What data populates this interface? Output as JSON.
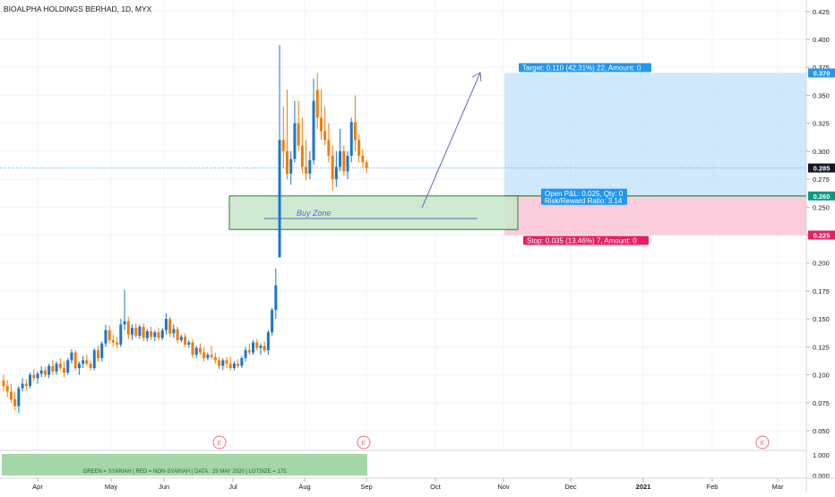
{
  "chart_data": {
    "type": "candlestick",
    "title": "BIOALPHA HOLDINGS BERHAD, 1D, MYX",
    "y_ticks": [
      "0.425",
      "0.400",
      "0.375",
      "0.350",
      "0.325",
      "0.300",
      "0.275",
      "0.250",
      "0.225",
      "0.200",
      "0.175",
      "0.150",
      "0.125",
      "0.100",
      "0.075",
      "0.050"
    ],
    "x_ticks": [
      "Apr",
      "May",
      "Jun",
      "Jul",
      "Aug",
      "Sep",
      "Oct",
      "Nov",
      "Dec",
      "2021",
      "Feb",
      "Mar"
    ],
    "ylim": [
      0.04,
      0.435
    ],
    "last_price": 0.285,
    "price_labels": [
      {
        "value": 0.37,
        "label": "0.370",
        "color": "#2196f3"
      },
      {
        "value": 0.285,
        "label": "0.285",
        "color": "#131722"
      },
      {
        "value": 0.26,
        "label": "0.260",
        "color": "#089981"
      },
      {
        "value": 0.225,
        "label": "0.225",
        "color": "#e91e63"
      }
    ],
    "colors": {
      "up": "#1976d2",
      "down": "#f57c00",
      "target": "#bbdefb",
      "stop": "#f8bbd0",
      "buy_zone": "#a5d6a7"
    },
    "candles": [
      [
        0.095,
        0.1,
        0.085,
        0.09
      ],
      [
        0.09,
        0.095,
        0.08,
        0.085
      ],
      [
        0.085,
        0.092,
        0.075,
        0.078
      ],
      [
        0.078,
        0.085,
        0.068,
        0.072
      ],
      [
        0.072,
        0.09,
        0.066,
        0.088
      ],
      [
        0.088,
        0.097,
        0.085,
        0.092
      ],
      [
        0.092,
        0.096,
        0.086,
        0.09
      ],
      [
        0.09,
        0.102,
        0.088,
        0.1
      ],
      [
        0.1,
        0.105,
        0.094,
        0.097
      ],
      [
        0.097,
        0.103,
        0.092,
        0.101
      ],
      [
        0.101,
        0.108,
        0.098,
        0.104
      ],
      [
        0.104,
        0.107,
        0.098,
        0.1
      ],
      [
        0.1,
        0.11,
        0.097,
        0.108
      ],
      [
        0.108,
        0.113,
        0.1,
        0.103
      ],
      [
        0.103,
        0.112,
        0.1,
        0.11
      ],
      [
        0.11,
        0.115,
        0.104,
        0.106
      ],
      [
        0.106,
        0.112,
        0.098,
        0.102
      ],
      [
        0.102,
        0.115,
        0.1,
        0.113
      ],
      [
        0.113,
        0.123,
        0.11,
        0.12
      ],
      [
        0.12,
        0.122,
        0.104,
        0.106
      ],
      [
        0.106,
        0.112,
        0.1,
        0.11
      ],
      [
        0.11,
        0.117,
        0.106,
        0.113
      ],
      [
        0.113,
        0.118,
        0.108,
        0.11
      ],
      [
        0.11,
        0.113,
        0.104,
        0.106
      ],
      [
        0.106,
        0.124,
        0.104,
        0.122
      ],
      [
        0.122,
        0.126,
        0.112,
        0.115
      ],
      [
        0.115,
        0.13,
        0.112,
        0.128
      ],
      [
        0.128,
        0.145,
        0.125,
        0.14
      ],
      [
        0.14,
        0.144,
        0.128,
        0.131
      ],
      [
        0.131,
        0.136,
        0.125,
        0.129
      ],
      [
        0.129,
        0.134,
        0.124,
        0.127
      ],
      [
        0.127,
        0.15,
        0.125,
        0.145
      ],
      [
        0.145,
        0.176,
        0.14,
        0.148
      ],
      [
        0.148,
        0.152,
        0.132,
        0.136
      ],
      [
        0.136,
        0.145,
        0.131,
        0.142
      ],
      [
        0.142,
        0.146,
        0.133,
        0.135
      ],
      [
        0.135,
        0.145,
        0.132,
        0.143
      ],
      [
        0.143,
        0.146,
        0.13,
        0.133
      ],
      [
        0.133,
        0.141,
        0.13,
        0.139
      ],
      [
        0.139,
        0.143,
        0.131,
        0.134
      ],
      [
        0.134,
        0.14,
        0.13,
        0.138
      ],
      [
        0.138,
        0.142,
        0.131,
        0.133
      ],
      [
        0.133,
        0.142,
        0.131,
        0.14
      ],
      [
        0.14,
        0.155,
        0.136,
        0.15
      ],
      [
        0.15,
        0.152,
        0.134,
        0.137
      ],
      [
        0.137,
        0.145,
        0.133,
        0.141
      ],
      [
        0.141,
        0.143,
        0.128,
        0.131
      ],
      [
        0.131,
        0.136,
        0.129,
        0.134
      ],
      [
        0.134,
        0.137,
        0.125,
        0.127
      ],
      [
        0.127,
        0.131,
        0.124,
        0.129
      ],
      [
        0.129,
        0.132,
        0.115,
        0.118
      ],
      [
        0.118,
        0.126,
        0.115,
        0.124
      ],
      [
        0.124,
        0.128,
        0.118,
        0.12
      ],
      [
        0.12,
        0.125,
        0.112,
        0.115
      ],
      [
        0.115,
        0.12,
        0.113,
        0.118
      ],
      [
        0.118,
        0.126,
        0.114,
        0.116
      ],
      [
        0.116,
        0.12,
        0.11,
        0.113
      ],
      [
        0.113,
        0.116,
        0.105,
        0.108
      ],
      [
        0.108,
        0.115,
        0.104,
        0.113
      ],
      [
        0.113,
        0.116,
        0.106,
        0.11
      ],
      [
        0.11,
        0.116,
        0.104,
        0.106
      ],
      [
        0.106,
        0.112,
        0.104,
        0.11
      ],
      [
        0.11,
        0.114,
        0.106,
        0.108
      ],
      [
        0.108,
        0.117,
        0.106,
        0.115
      ],
      [
        0.115,
        0.125,
        0.112,
        0.122
      ],
      [
        0.122,
        0.128,
        0.118,
        0.12
      ],
      [
        0.12,
        0.131,
        0.118,
        0.129
      ],
      [
        0.129,
        0.132,
        0.122,
        0.124
      ],
      [
        0.124,
        0.128,
        0.118,
        0.126
      ],
      [
        0.126,
        0.13,
        0.12,
        0.122
      ],
      [
        0.122,
        0.14,
        0.118,
        0.138
      ],
      [
        0.138,
        0.16,
        0.135,
        0.158
      ],
      [
        0.158,
        0.195,
        0.15,
        0.18
      ],
      [
        0.205,
        0.395,
        0.205,
        0.31
      ],
      [
        0.31,
        0.34,
        0.285,
        0.3
      ],
      [
        0.3,
        0.355,
        0.275,
        0.28
      ],
      [
        0.28,
        0.3,
        0.27,
        0.293
      ],
      [
        0.293,
        0.345,
        0.29,
        0.325
      ],
      [
        0.325,
        0.345,
        0.3,
        0.305
      ],
      [
        0.305,
        0.33,
        0.28,
        0.286
      ],
      [
        0.286,
        0.31,
        0.274,
        0.28
      ],
      [
        0.28,
        0.3,
        0.275,
        0.292
      ],
      [
        0.292,
        0.365,
        0.288,
        0.345
      ],
      [
        0.355,
        0.37,
        0.32,
        0.33
      ],
      [
        0.33,
        0.355,
        0.31,
        0.318
      ],
      [
        0.318,
        0.34,
        0.305,
        0.31
      ],
      [
        0.31,
        0.325,
        0.29,
        0.296
      ],
      [
        0.296,
        0.305,
        0.265,
        0.275
      ],
      [
        0.275,
        0.3,
        0.268,
        0.286
      ],
      [
        0.286,
        0.32,
        0.282,
        0.3
      ],
      [
        0.3,
        0.305,
        0.278,
        0.282
      ],
      [
        0.282,
        0.3,
        0.275,
        0.296
      ],
      [
        0.296,
        0.33,
        0.29,
        0.326
      ],
      [
        0.326,
        0.35,
        0.3,
        0.31
      ],
      [
        0.31,
        0.315,
        0.29,
        0.296
      ],
      [
        0.296,
        0.302,
        0.285,
        0.29
      ],
      [
        0.29,
        0.292,
        0.28,
        0.285
      ]
    ],
    "position": {
      "entry": 0.26,
      "target": 0.37,
      "stop": 0.225,
      "target_label": "Target: 0.110 (42.31%) 22, Amount: 0",
      "stop_label": "Stop: 0.035 (13.46%) 7, Amount: 0",
      "pl_label": "Open P&L: 0.025, Qty: 0",
      "rr_label": "Risk/Reward Ratio: 3.14"
    },
    "buy_zone": {
      "label": "Buy Zone",
      "high": 0.26,
      "low": 0.23
    },
    "earnings_marker": "E",
    "indicator": {
      "text": "GREEN = SYARIAH  |  RED = NON-SYARIAH  |  DATA : 29 MAY 2020  |  LOTSIZE = 175",
      "y_ticks": [
        "1.000",
        "0.000"
      ]
    }
  }
}
